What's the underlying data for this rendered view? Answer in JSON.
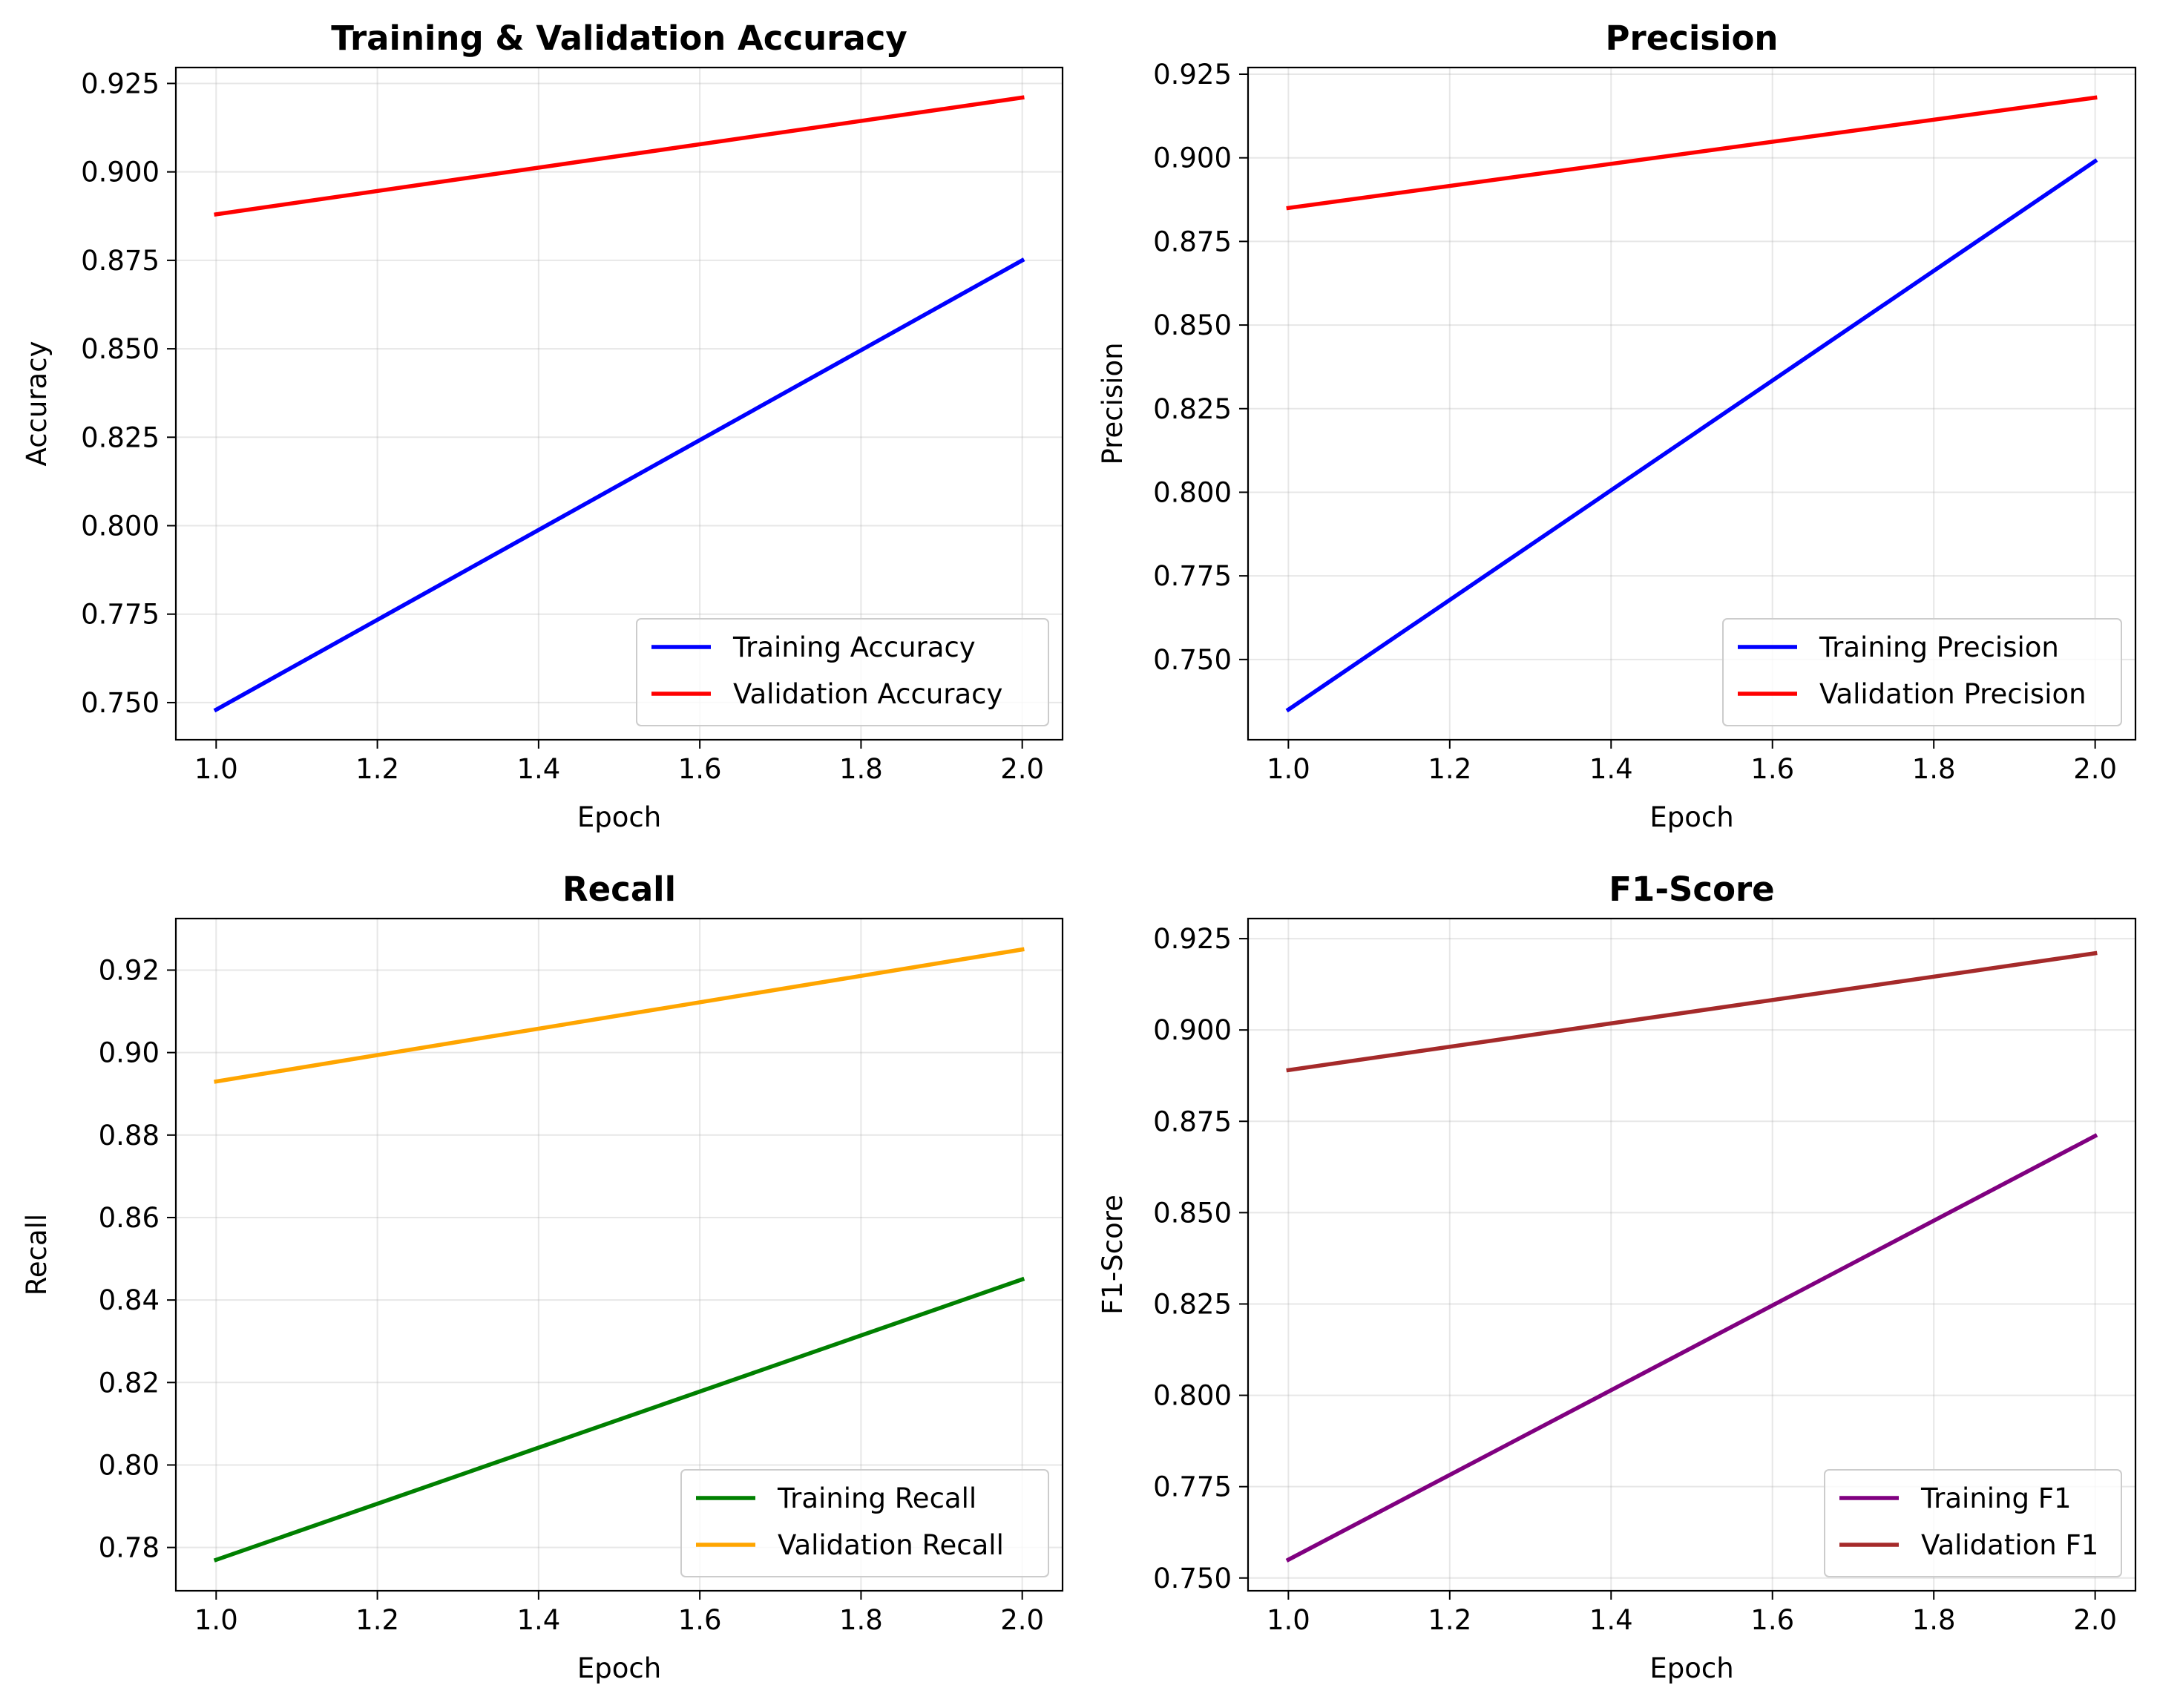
{
  "chart_data": [
    {
      "type": "line",
      "title": "Training & Validation Accuracy",
      "xlabel": "Epoch",
      "ylabel": "Accuracy",
      "xlim": [
        0.95,
        2.05
      ],
      "ylim": [
        0.7395,
        0.9295
      ],
      "xticks": [
        1.0,
        1.2,
        1.4,
        1.6,
        1.8,
        2.0
      ],
      "xtick_labels": [
        "1.0",
        "1.2",
        "1.4",
        "1.6",
        "1.8",
        "2.0"
      ],
      "yticks": [
        0.75,
        0.775,
        0.8,
        0.825,
        0.85,
        0.875,
        0.9,
        0.925
      ],
      "ytick_labels": [
        "0.750",
        "0.775",
        "0.800",
        "0.825",
        "0.850",
        "0.875",
        "0.900",
        "0.925"
      ],
      "grid": true,
      "legend_position": "lower-right",
      "x": [
        1.0,
        2.0
      ],
      "series": [
        {
          "name": "Training Accuracy",
          "color": "#0000ff",
          "values": [
            0.748,
            0.875
          ]
        },
        {
          "name": "Validation Accuracy",
          "color": "#ff0000",
          "values": [
            0.888,
            0.921
          ]
        }
      ]
    },
    {
      "type": "line",
      "title": "Precision",
      "xlabel": "Epoch",
      "ylabel": "Precision",
      "xlim": [
        0.95,
        2.05
      ],
      "ylim": [
        0.726,
        0.927
      ],
      "xticks": [
        1.0,
        1.2,
        1.4,
        1.6,
        1.8,
        2.0
      ],
      "xtick_labels": [
        "1.0",
        "1.2",
        "1.4",
        "1.6",
        "1.8",
        "2.0"
      ],
      "yticks": [
        0.75,
        0.775,
        0.8,
        0.825,
        0.85,
        0.875,
        0.9,
        0.925
      ],
      "ytick_labels": [
        "0.750",
        "0.775",
        "0.800",
        "0.825",
        "0.850",
        "0.875",
        "0.900",
        "0.925"
      ],
      "grid": true,
      "legend_position": "lower-right",
      "x": [
        1.0,
        2.0
      ],
      "series": [
        {
          "name": "Training Precision",
          "color": "#0000ff",
          "values": [
            0.735,
            0.899
          ]
        },
        {
          "name": "Validation Precision",
          "color": "#ff0000",
          "values": [
            0.885,
            0.918
          ]
        }
      ]
    },
    {
      "type": "line",
      "title": "Recall",
      "xlabel": "Epoch",
      "ylabel": "Recall",
      "xlim": [
        0.95,
        2.05
      ],
      "ylim": [
        0.7695,
        0.9325
      ],
      "xticks": [
        1.0,
        1.2,
        1.4,
        1.6,
        1.8,
        2.0
      ],
      "xtick_labels": [
        "1.0",
        "1.2",
        "1.4",
        "1.6",
        "1.8",
        "2.0"
      ],
      "yticks": [
        0.78,
        0.8,
        0.82,
        0.84,
        0.86,
        0.88,
        0.9,
        0.92
      ],
      "ytick_labels": [
        "0.78",
        "0.80",
        "0.82",
        "0.84",
        "0.86",
        "0.88",
        "0.90",
        "0.92"
      ],
      "grid": true,
      "legend_position": "lower-right",
      "x": [
        1.0,
        2.0
      ],
      "series": [
        {
          "name": "Training Recall",
          "color": "#008000",
          "values": [
            0.777,
            0.845
          ]
        },
        {
          "name": "Validation Recall",
          "color": "#ffa500",
          "values": [
            0.893,
            0.925
          ]
        }
      ]
    },
    {
      "type": "line",
      "title": "F1-Score",
      "xlabel": "Epoch",
      "ylabel": "F1-Score",
      "xlim": [
        0.95,
        2.05
      ],
      "ylim": [
        0.7465,
        0.9305
      ],
      "xticks": [
        1.0,
        1.2,
        1.4,
        1.6,
        1.8,
        2.0
      ],
      "xtick_labels": [
        "1.0",
        "1.2",
        "1.4",
        "1.6",
        "1.8",
        "2.0"
      ],
      "yticks": [
        0.75,
        0.775,
        0.8,
        0.825,
        0.85,
        0.875,
        0.9,
        0.925
      ],
      "ytick_labels": [
        "0.750",
        "0.775",
        "0.800",
        "0.825",
        "0.850",
        "0.875",
        "0.900",
        "0.925"
      ],
      "grid": true,
      "legend_position": "lower-right",
      "x": [
        1.0,
        2.0
      ],
      "series": [
        {
          "name": "Training F1",
          "color": "#800080",
          "values": [
            0.755,
            0.871
          ]
        },
        {
          "name": "Validation F1",
          "color": "#a52a2a",
          "values": [
            0.889,
            0.921
          ]
        }
      ]
    }
  ]
}
